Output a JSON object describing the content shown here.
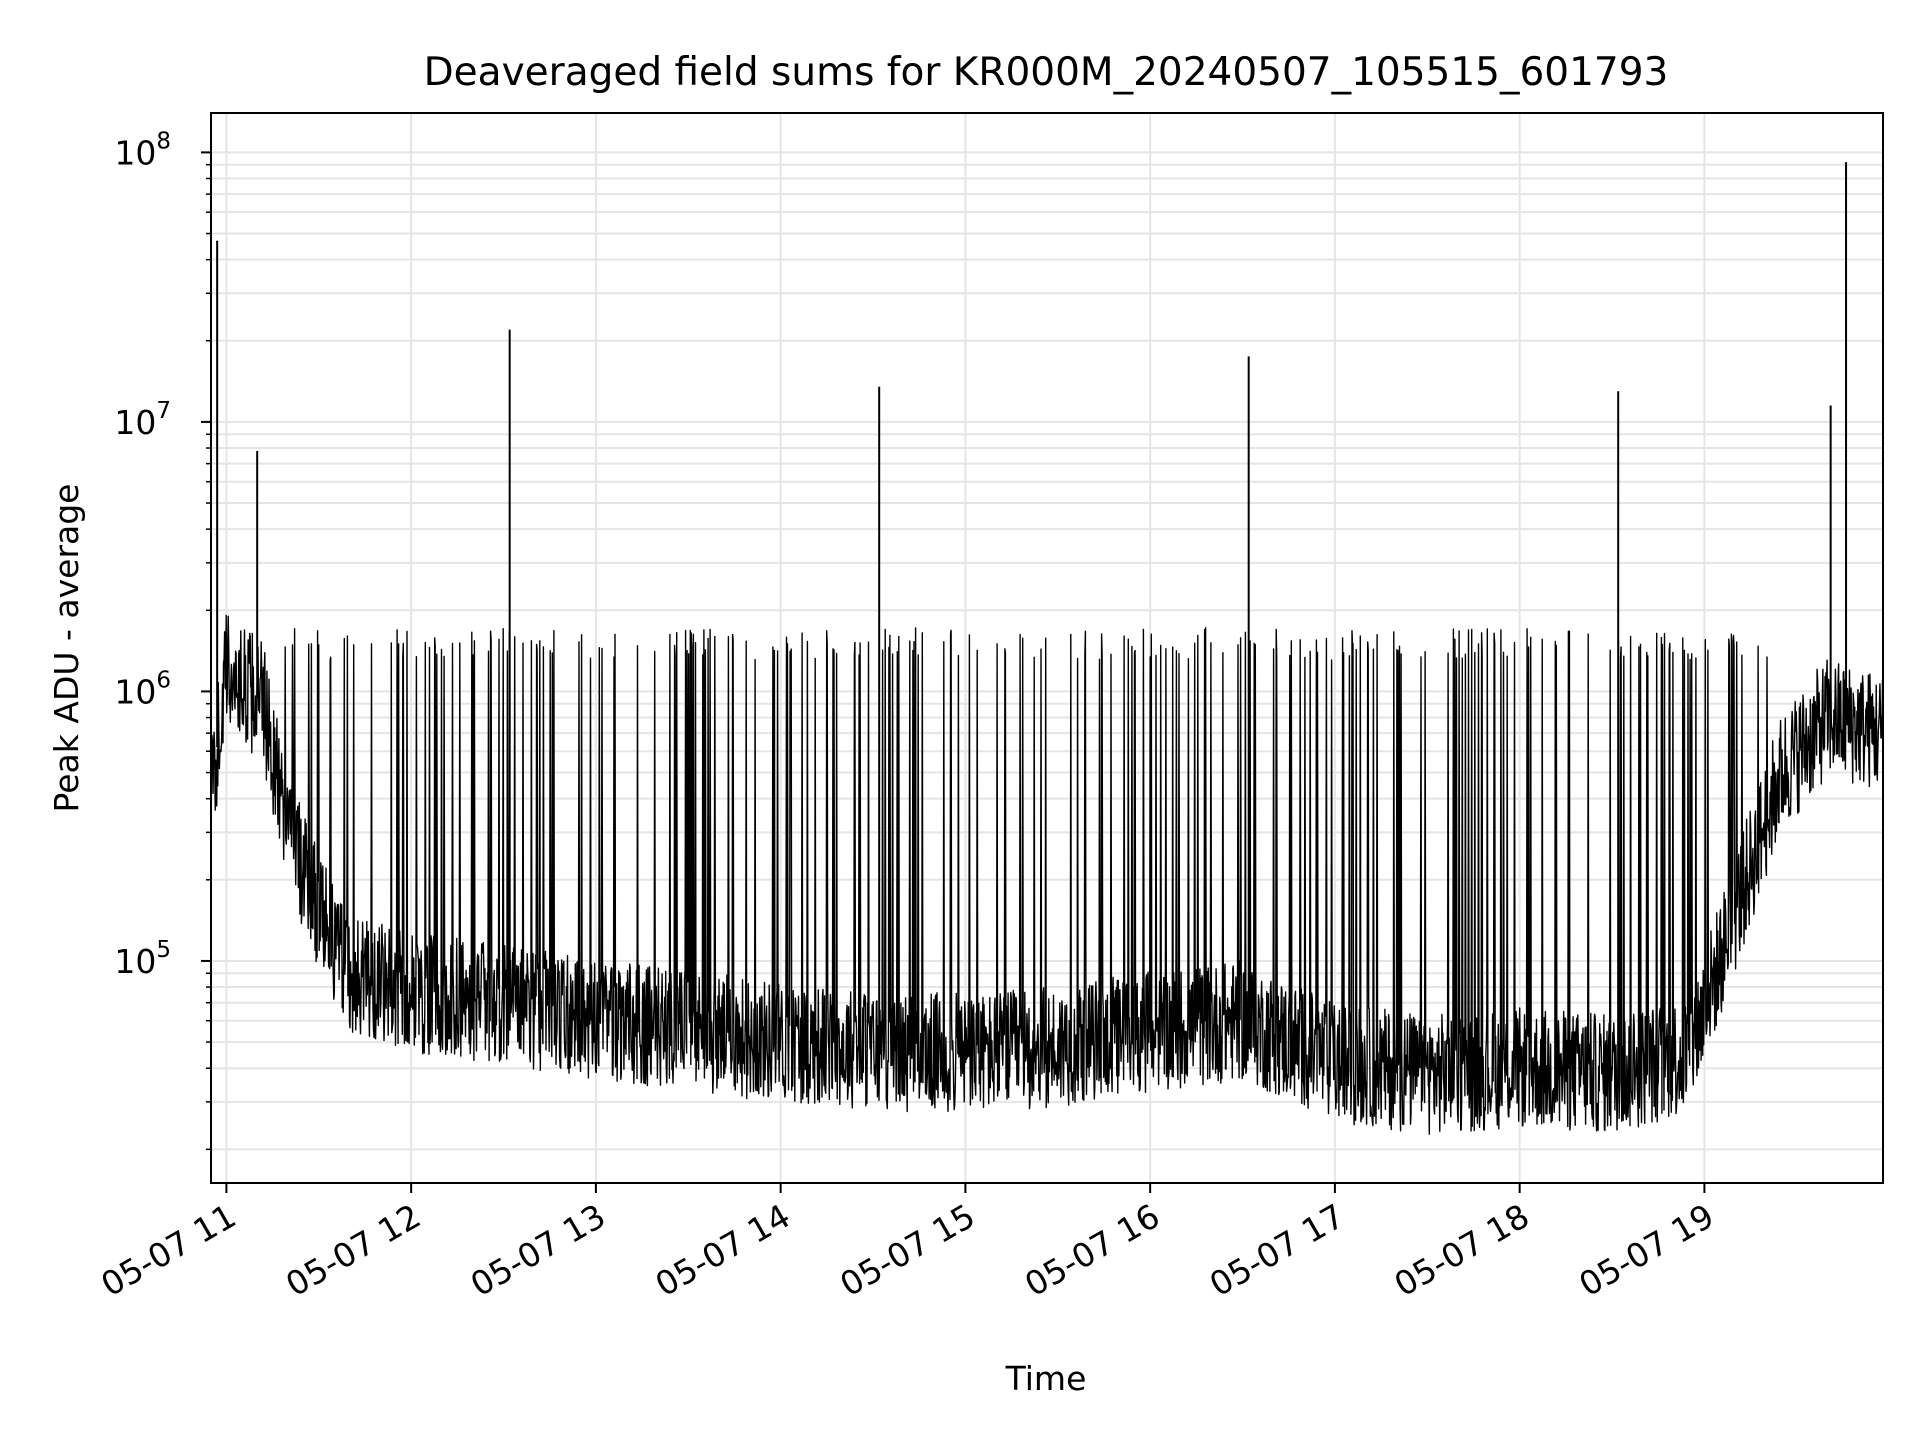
{
  "chart_data": {
    "type": "line",
    "title": "Deaveraged field sums for KR000M_20240507_105515_601793",
    "xlabel": "Time",
    "ylabel": "Peak ADU - average",
    "xscale": "time",
    "yscale": "log",
    "xlim": [
      "2024-05-07 10:55:00",
      "2024-05-07 19:58:00"
    ],
    "ylim": [
      15000,
      140000000
    ],
    "grid": true,
    "colors": {
      "line": "#000000",
      "grid": "#e5e5e5",
      "axes": "#000000"
    },
    "x_ticks": [
      {
        "t": "2024-05-07 11:00",
        "label": "05-07 11"
      },
      {
        "t": "2024-05-07 12:00",
        "label": "05-07 12"
      },
      {
        "t": "2024-05-07 13:00",
        "label": "05-07 13"
      },
      {
        "t": "2024-05-07 14:00",
        "label": "05-07 14"
      },
      {
        "t": "2024-05-07 15:00",
        "label": "05-07 15"
      },
      {
        "t": "2024-05-07 16:00",
        "label": "05-07 16"
      },
      {
        "t": "2024-05-07 17:00",
        "label": "05-07 17"
      },
      {
        "t": "2024-05-07 18:00",
        "label": "05-07 18"
      },
      {
        "t": "2024-05-07 19:00",
        "label": "05-07 19"
      }
    ],
    "y_ticks": [
      {
        "value": 100000,
        "base": "10",
        "exp": "5"
      },
      {
        "value": 1000000,
        "base": "10",
        "exp": "6"
      },
      {
        "value": 10000000,
        "base": "10",
        "exp": "7"
      },
      {
        "value": 100000000,
        "base": "10",
        "exp": "8"
      }
    ],
    "series": [
      {
        "values_note_excluded": true,
        "baseline": [
          [
            "2024-05-07 10:55:00",
            400000
          ],
          [
            "2024-05-07 11:00:00",
            1200000
          ],
          [
            "2024-05-07 11:12:00",
            900000
          ],
          [
            "2024-05-07 11:20:00",
            300000
          ],
          [
            "2024-05-07 11:30:00",
            150000
          ],
          [
            "2024-05-07 11:40:00",
            90000
          ],
          [
            "2024-05-07 12:00:00",
            75000
          ],
          [
            "2024-05-07 12:30:00",
            70000
          ],
          [
            "2024-05-07 13:00:00",
            60000
          ],
          [
            "2024-05-07 13:30:00",
            55000
          ],
          [
            "2024-05-07 14:00:00",
            50000
          ],
          [
            "2024-05-07 14:30:00",
            47000
          ],
          [
            "2024-05-07 15:00:00",
            45000
          ],
          [
            "2024-05-07 15:30:00",
            48000
          ],
          [
            "2024-05-07 16:00:00",
            55000
          ],
          [
            "2024-05-07 16:30:00",
            60000
          ],
          [
            "2024-05-07 17:00:00",
            42000
          ],
          [
            "2024-05-07 17:30:00",
            38000
          ],
          [
            "2024-05-07 18:00:00",
            40000
          ],
          [
            "2024-05-07 18:30:00",
            38000
          ],
          [
            "2024-05-07 18:55:00",
            45000
          ],
          [
            "2024-05-07 19:10:00",
            150000
          ],
          [
            "2024-05-07 19:25:00",
            500000
          ],
          [
            "2024-05-07 19:40:00",
            800000
          ],
          [
            "2024-05-07 19:58:00",
            700000
          ]
        ],
        "band_top": 1500000,
        "spikes": [
          [
            "2024-05-07 10:57:00",
            47000000
          ],
          [
            "2024-05-07 11:10:00",
            7800000
          ],
          [
            "2024-05-07 12:32:00",
            22000000
          ],
          [
            "2024-05-07 14:32:00",
            13500000
          ],
          [
            "2024-05-07 16:32:00",
            17500000
          ],
          [
            "2024-05-07 18:32:00",
            13000000
          ],
          [
            "2024-05-07 19:41:00",
            11500000
          ],
          [
            "2024-05-07 19:46:00",
            92000000
          ]
        ]
      }
    ]
  }
}
